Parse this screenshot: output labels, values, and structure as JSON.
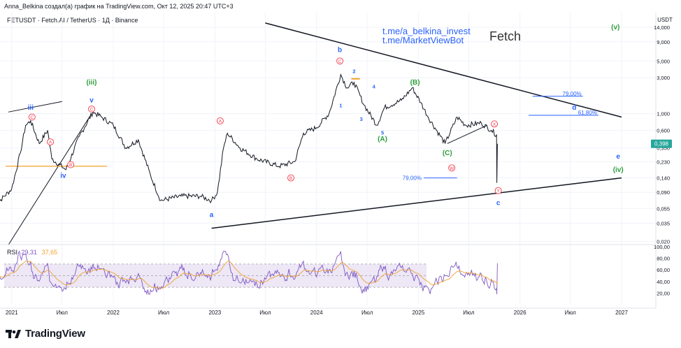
{
  "header": {
    "author_line": "Anna_Belkina создал(а) график на TradingView.com, Окт 12, 2025 20:47 UTC+3",
    "symbol_line": "FETUSDT · Fetch.AI / TetherUS · 1Д · Binance"
  },
  "watermark": {
    "links": [
      "t.me/a_belkina_invest",
      "t.me/MarketViewBot"
    ],
    "title": "Fetch"
  },
  "footer": {
    "logo_text": "TradingView"
  },
  "colors": {
    "price": "#131722",
    "rsi": "#7e57c2",
    "rsi_ma": "#f0a22d",
    "rsi_band": "#ede7f6",
    "wave_blue": "#2962ff",
    "wave_green": "#2e9e3e",
    "wave_red": "#f23645",
    "fib": "#2962ff",
    "orange_level": "#f0a22d",
    "last_price_badge": "#26a69a"
  },
  "chart_data": {
    "type": "line",
    "title": "FETUSDT · Fetch.AI / TetherUS · 1Д · Binance",
    "y_scale": "log",
    "y_unit": "USDT",
    "y_ticks": [
      "14,000",
      "9,000",
      "5,000",
      "3,000",
      "1,000",
      "0,600",
      "0,350",
      "0,230",
      "0,140",
      "0,090",
      "0,055",
      "0,035",
      "0,020"
    ],
    "y_tick_values": [
      14,
      9,
      5,
      3,
      1,
      0.6,
      0.35,
      0.23,
      0.14,
      0.09,
      0.055,
      0.035,
      0.02
    ],
    "x_ticks": [
      "2021",
      "Июл",
      "2022",
      "Июл",
      "2023",
      "Июл",
      "2024",
      "Июл",
      "2025",
      "Июл",
      "2026",
      "Июл",
      "2027"
    ],
    "x_tick_dates": [
      "2021-01-01",
      "2021-07-01",
      "2022-01-01",
      "2022-07-01",
      "2023-01-01",
      "2023-07-01",
      "2024-01-01",
      "2024-07-01",
      "2025-01-01",
      "2025-07-01",
      "2026-01-01",
      "2026-07-01",
      "2027-01-01"
    ],
    "last_price": "0,398",
    "series": [
      {
        "points": [
          [
            "2020-11-01",
            0.06
          ],
          [
            "2021-01-01",
            0.1
          ],
          [
            "2021-02-01",
            0.3
          ],
          [
            "2021-02-20",
            0.7
          ],
          [
            "2021-03-10",
            0.8
          ],
          [
            "2021-04-10",
            0.4
          ],
          [
            "2021-05-10",
            0.6
          ],
          [
            "2021-05-25",
            0.25
          ],
          [
            "2021-07-15",
            0.18
          ],
          [
            "2021-09-01",
            0.5
          ],
          [
            "2021-10-20",
            1.05
          ],
          [
            "2021-11-20",
            0.9
          ],
          [
            "2022-01-01",
            0.7
          ],
          [
            "2022-02-15",
            0.35
          ],
          [
            "2022-04-01",
            0.45
          ],
          [
            "2022-05-15",
            0.15
          ],
          [
            "2022-06-20",
            0.07
          ],
          [
            "2022-09-01",
            0.08
          ],
          [
            "2022-11-10",
            0.08
          ],
          [
            "2022-12-20",
            0.07
          ],
          [
            "2023-01-10",
            0.09
          ],
          [
            "2023-02-01",
            0.35
          ],
          [
            "2023-02-15",
            0.55
          ],
          [
            "2023-04-01",
            0.35
          ],
          [
            "2023-06-01",
            0.25
          ],
          [
            "2023-08-20",
            0.2
          ],
          [
            "2023-10-15",
            0.23
          ],
          [
            "2023-11-15",
            0.55
          ],
          [
            "2024-01-01",
            0.65
          ],
          [
            "2024-02-15",
            1.0
          ],
          [
            "2024-03-28",
            3.3
          ],
          [
            "2024-04-20",
            2.2
          ],
          [
            "2024-05-15",
            2.6
          ],
          [
            "2024-06-20",
            1.3
          ],
          [
            "2024-08-05",
            0.7
          ],
          [
            "2024-09-01",
            1.2
          ],
          [
            "2024-11-01",
            1.5
          ],
          [
            "2024-12-10",
            2.2
          ],
          [
            "2025-01-10",
            1.4
          ],
          [
            "2025-02-05",
            0.9
          ],
          [
            "2025-04-07",
            0.4
          ],
          [
            "2025-05-20",
            0.9
          ],
          [
            "2025-06-20",
            0.7
          ],
          [
            "2025-08-15",
            0.75
          ],
          [
            "2025-09-20",
            0.6
          ],
          [
            "2025-10-09",
            0.52
          ],
          [
            "2025-10-10",
            0.12
          ],
          [
            "2025-10-12",
            0.398
          ]
        ]
      }
    ],
    "rsi": {
      "label": "RSI",
      "value": "29,31",
      "ma_value": "37,65",
      "levels": [
        70,
        50,
        30
      ],
      "y_ticks": [
        "100,00",
        "80,00",
        "60,00",
        "40,00",
        "20,00"
      ],
      "y_tick_values": [
        100,
        80,
        60,
        40,
        20
      ]
    },
    "trendlines": [
      {
        "from": [
          "2022-12-20",
          0.03
        ],
        "to": [
          "2027-01-01",
          0.14
        ]
      },
      {
        "from": [
          "2023-07-01",
          16
        ],
        "to": [
          "2027-01-01",
          0.9
        ]
      }
    ],
    "fib_levels": [
      {
        "label": "79,00%",
        "value": 1.7,
        "from": "2026-02-15",
        "to": "2026-08-15"
      },
      {
        "label": "61,80%",
        "value": 0.95,
        "from": "2026-02-01",
        "to": "2026-10-10"
      },
      {
        "label": "79,00%",
        "value": 0.14,
        "from": "2025-01-20",
        "to": "2025-05-20"
      }
    ],
    "annotations": [
      {
        "text": "(iii)",
        "x": "2021-10-15",
        "y": 2.6,
        "style": "green"
      },
      {
        "text": "v",
        "x": "2021-10-15",
        "y": 1.5,
        "style": "blue"
      },
      {
        "text": "C",
        "x": "2021-10-15",
        "y": 1.15,
        "style": "red-circle"
      },
      {
        "text": "iii",
        "x": "2021-03-10",
        "y": 1.2,
        "style": "blue"
      },
      {
        "text": "C",
        "x": "2021-03-15",
        "y": 0.9,
        "style": "red-circle"
      },
      {
        "text": "A",
        "x": "2021-05-20",
        "y": 0.42,
        "style": "red-circle"
      },
      {
        "text": "B",
        "x": "2021-08-01",
        "y": 0.21,
        "style": "red-circle"
      },
      {
        "text": "iv",
        "x": "2021-07-05",
        "y": 0.15,
        "style": "blue"
      },
      {
        "text": "A",
        "x": "2023-01-20",
        "y": 0.8,
        "style": "red-circle"
      },
      {
        "text": "B",
        "x": "2023-10-01",
        "y": 0.14,
        "style": "red-circle"
      },
      {
        "text": "a",
        "x": "2022-12-20",
        "y": 0.045,
        "style": "blue"
      },
      {
        "text": "b",
        "x": "2024-03-25",
        "y": 7.0,
        "style": "blue"
      },
      {
        "text": "C",
        "x": "2024-03-25",
        "y": 5.0,
        "style": "red-circle"
      },
      {
        "text": "2",
        "x": "2024-05-15",
        "y": 3.7,
        "style": "blue"
      },
      {
        "text": "1",
        "x": "2024-03-28",
        "y": 1.3,
        "style": "blue"
      },
      {
        "text": "3",
        "x": "2024-06-10",
        "y": 0.85,
        "style": "blue"
      },
      {
        "text": "4",
        "x": "2024-07-25",
        "y": 2.3,
        "style": "blue"
      },
      {
        "text": "5",
        "x": "2024-08-25",
        "y": 0.56,
        "style": "blue"
      },
      {
        "text": "(A)",
        "x": "2024-08-25",
        "y": 0.46,
        "style": "green"
      },
      {
        "text": "(B)",
        "x": "2024-12-20",
        "y": 2.6,
        "style": "green"
      },
      {
        "text": "(C)",
        "x": "2025-04-15",
        "y": 0.3,
        "style": "green"
      },
      {
        "text": "W",
        "x": "2025-05-01",
        "y": 0.19,
        "style": "red-circle"
      },
      {
        "text": "X",
        "x": "2025-10-01",
        "y": 0.73,
        "style": "red-circle"
      },
      {
        "text": "Y",
        "x": "2025-10-15",
        "y": 0.095,
        "style": "red-circle"
      },
      {
        "text": "c",
        "x": "2025-10-15",
        "y": 0.065,
        "style": "blue"
      },
      {
        "text": "d",
        "x": "2026-07-15",
        "y": 1.2,
        "style": "blue"
      },
      {
        "text": "e",
        "x": "2026-12-20",
        "y": 0.27,
        "style": "blue"
      },
      {
        "text": "(iv)",
        "x": "2026-12-20",
        "y": 0.18,
        "style": "green"
      },
      {
        "text": "(v)",
        "x": "2026-12-10",
        "y": 14.0,
        "style": "green"
      }
    ]
  }
}
